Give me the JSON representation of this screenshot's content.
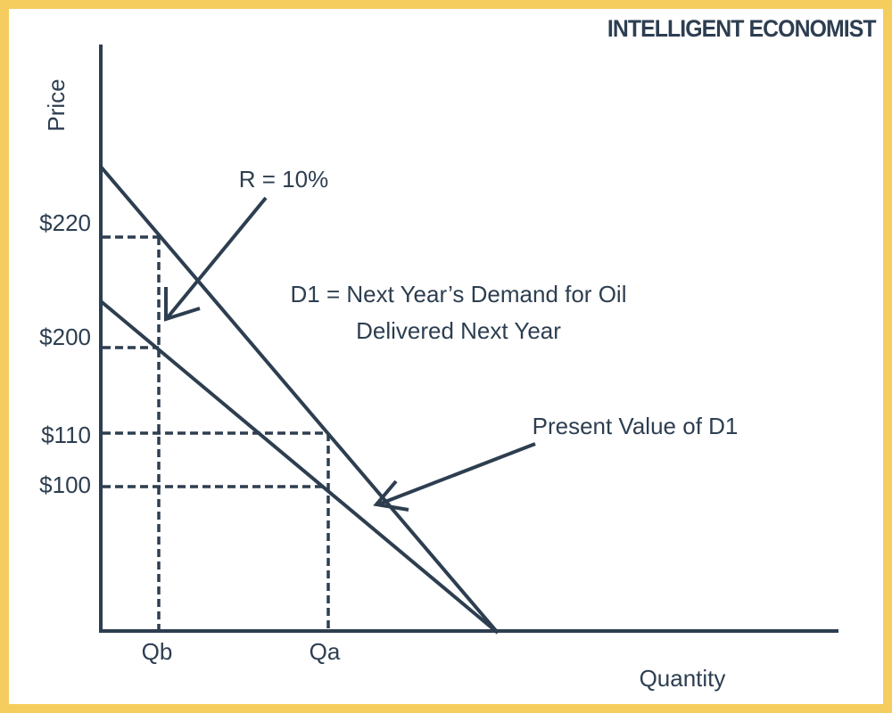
{
  "brand": "INTELLIGENT ECONOMIST",
  "axes": {
    "y_label": "Price",
    "x_label": "Quantity"
  },
  "price_labels": [
    "$220",
    "$200",
    "$110",
    "$100"
  ],
  "quantity_labels": [
    "Qb",
    "Qa"
  ],
  "annotations": {
    "rate": "R = 10%",
    "d1": [
      "D1 = Next Year’s Demand for Oil",
      "Delivered Next Year"
    ],
    "pv": "Present Value of D1"
  }
}
